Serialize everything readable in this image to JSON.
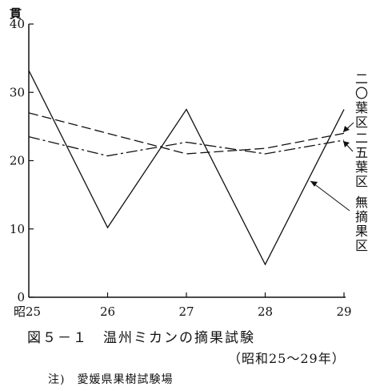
{
  "chart_data": {
    "type": "line",
    "ylabel": "貫",
    "x": [
      "昭25",
      "26",
      "27",
      "28",
      "29"
    ],
    "ylim": [
      0,
      40
    ],
    "yticks": [
      "0",
      "10",
      "20",
      "30",
      "40"
    ],
    "grid": false,
    "series": [
      {
        "name": "無摘果区",
        "style": "solid",
        "values": [
          33.2,
          10.2,
          27.5,
          4.8,
          27.5
        ]
      },
      {
        "name": "二〇葉区",
        "style": "dash",
        "values": [
          27.0,
          24.0,
          21.0,
          21.8,
          24.0
        ]
      },
      {
        "name": "二五葉区",
        "style": "dashdot",
        "values": [
          23.5,
          20.7,
          22.7,
          21.0,
          23.0
        ]
      }
    ],
    "labels": {
      "s20": "二〇葉区",
      "s25": "二五葉区",
      "s0": "無摘果区"
    }
  },
  "caption": {
    "main": "図５－１　温州ミカンの摘果試験",
    "sub": "（昭和25～29年）"
  },
  "note": "注)　愛媛県果樹試験場",
  "colors": {
    "ink": "#111111",
    "background": "#ffffff"
  }
}
